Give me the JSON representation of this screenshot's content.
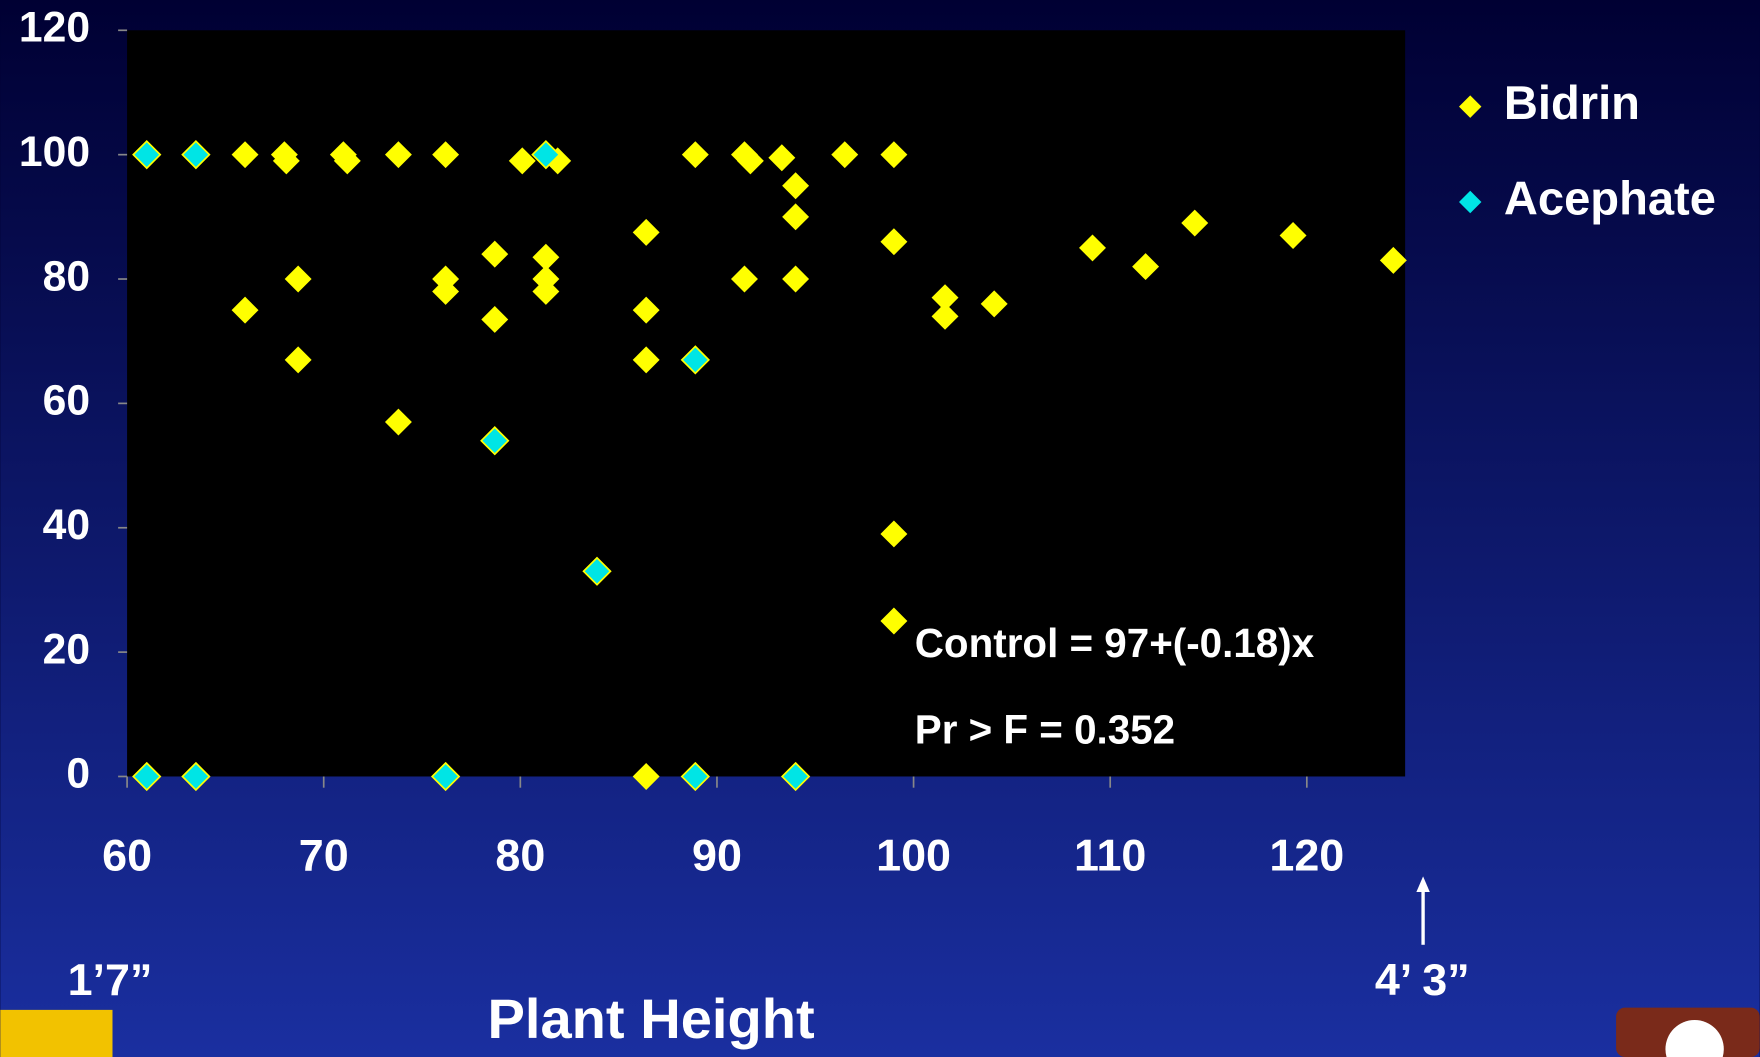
{
  "chart_data": {
    "type": "scatter",
    "xlabel": "Plant Height",
    "annotations": [
      "Control = 97+(-0.18)x",
      "Pr > F = 0.352",
      "1’7”",
      "4’ 3”"
    ],
    "xlim": [
      60,
      125
    ],
    "ylim": [
      0,
      120
    ],
    "xticks": [
      60,
      70,
      80,
      90,
      100,
      110,
      120
    ],
    "yticks": [
      0,
      20,
      40,
      60,
      80,
      100,
      120
    ],
    "legend": "right",
    "series": [
      {
        "name": "Bidrin",
        "color": "#ffff00",
        "x": [
          61,
          63.5,
          66,
          68,
          68.1,
          71,
          71.2,
          73.8,
          76.2,
          80.1,
          81.9,
          88.9,
          91.4,
          91.7,
          93.3,
          96.5,
          99,
          66,
          68.7,
          68.7,
          73.8,
          76.2,
          76.2,
          78.7,
          78.7,
          81.3,
          81.3,
          81.3,
          86.4,
          86.4,
          86.4,
          86.4,
          91.4,
          94,
          94,
          94,
          99,
          99,
          99,
          101.6,
          101.6,
          104.1,
          109.1,
          111.8,
          114.3,
          119.3,
          124.4,
          88.9
        ],
        "y": [
          100,
          100,
          100,
          100,
          99,
          100,
          99,
          100,
          100,
          99,
          99,
          100,
          100,
          99,
          99.5,
          100,
          100,
          75,
          80,
          67,
          57,
          80,
          78,
          84,
          73.5,
          83.5,
          80,
          78,
          87.5,
          75,
          67,
          0,
          80,
          95,
          90,
          80,
          86,
          39,
          25,
          77,
          74,
          76,
          85,
          82,
          89,
          87,
          83,
          0
        ]
      },
      {
        "name": "Acephate",
        "color": "#00e5e5",
        "x": [
          61,
          63.5,
          81.3,
          88.9,
          78.7,
          83.9,
          61,
          63.5,
          76.2,
          88.9,
          94
        ],
        "y": [
          100,
          100,
          100,
          67,
          54,
          33,
          0,
          0,
          0,
          0,
          0
        ]
      }
    ]
  }
}
